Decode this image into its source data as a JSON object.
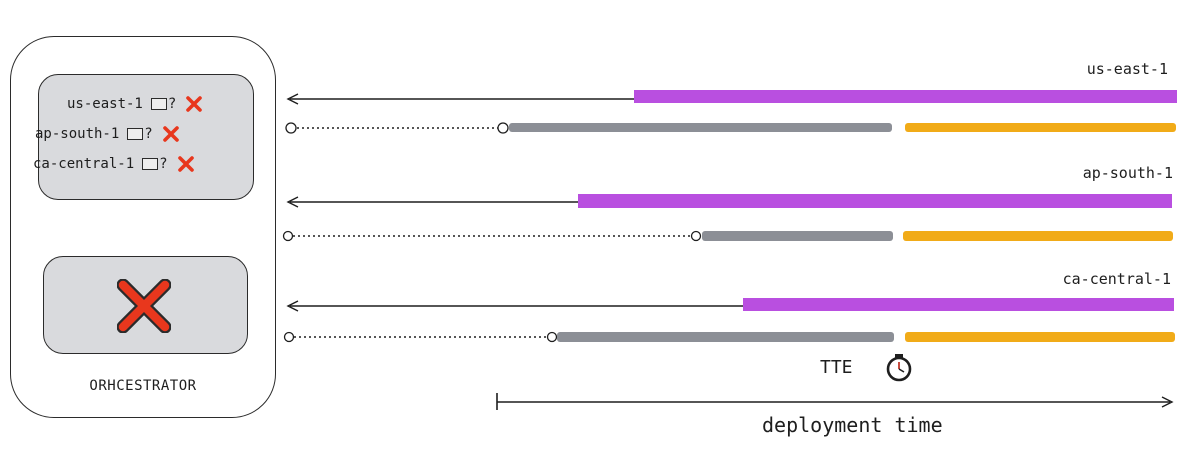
{
  "orchestrator": {
    "label": "ORHCESTRATOR",
    "status_rows": [
      {
        "region": "us-east-1",
        "query": "?"
      },
      {
        "region": "ap-south-1",
        "query": "?"
      },
      {
        "region": "ca-central-1",
        "query": "?"
      }
    ]
  },
  "regions": [
    {
      "label": "us-east-1"
    },
    {
      "label": "ap-south-1"
    },
    {
      "label": "ca-central-1"
    }
  ],
  "tte_label": "TTE",
  "axis_label": "deployment time",
  "colors": {
    "purple_bar": "#b94fe0",
    "gray_bar": "#8c8f96",
    "orange_bar": "#f1ab18",
    "failure_x": "#e8371d",
    "panel": "#d9dadd"
  }
}
